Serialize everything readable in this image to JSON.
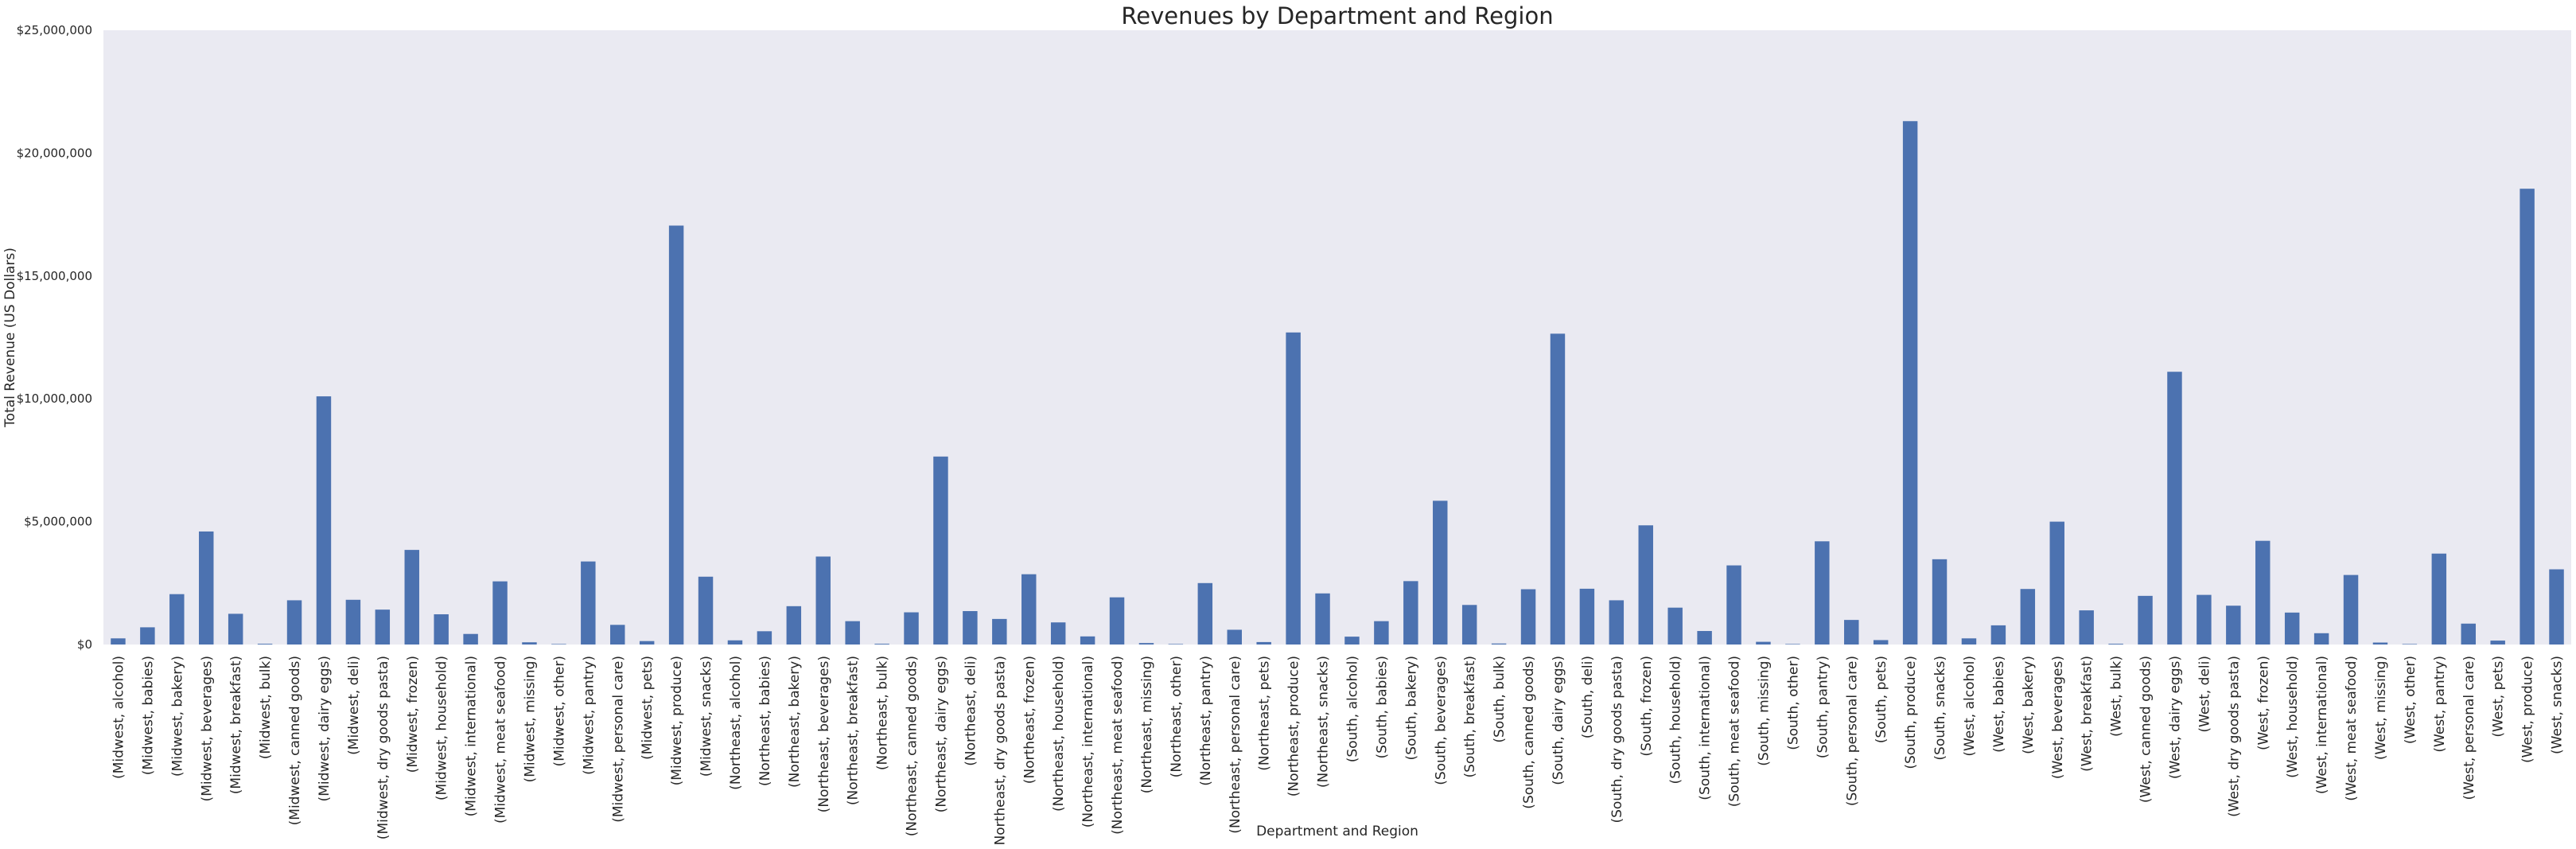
{
  "chart_data": {
    "type": "bar",
    "title": "Revenues by Department and Region",
    "xlabel": "Department and Region",
    "ylabel": "Total Revenue (US Dollars)",
    "ylim": [
      0,
      25000000
    ],
    "yticks": [
      0,
      5000000,
      10000000,
      15000000,
      20000000,
      25000000
    ],
    "ytick_labels": [
      "$0",
      "$5,000,000",
      "$10,000,000",
      "$15,000,000",
      "$20,000,000",
      "$25,000,000"
    ],
    "grid": false,
    "bar_color": "#4c72b0",
    "plot_background": "#eaeaf2",
    "categories": [
      "(Midwest, alcohol)",
      "(Midwest, babies)",
      "(Midwest, bakery)",
      "(Midwest, beverages)",
      "(Midwest, breakfast)",
      "(Midwest, bulk)",
      "(Midwest, canned goods)",
      "(Midwest, dairy eggs)",
      "(Midwest, deli)",
      "(Midwest, dry goods pasta)",
      "(Midwest, frozen)",
      "(Midwest, household)",
      "(Midwest, international)",
      "(Midwest, meat seafood)",
      "(Midwest, missing)",
      "(Midwest, other)",
      "(Midwest, pantry)",
      "(Midwest, personal care)",
      "(Midwest, pets)",
      "(Midwest, produce)",
      "(Midwest, snacks)",
      "(Northeast, alcohol)",
      "(Northeast, babies)",
      "(Northeast, bakery)",
      "(Northeast, beverages)",
      "(Northeast, breakfast)",
      "(Northeast, bulk)",
      "(Northeast, canned goods)",
      "(Northeast, dairy eggs)",
      "(Northeast, deli)",
      "(Northeast, dry goods pasta)",
      "(Northeast, frozen)",
      "(Northeast, household)",
      "(Northeast, international)",
      "(Northeast, meat seafood)",
      "(Northeast, missing)",
      "(Northeast, other)",
      "(Northeast, pantry)",
      "(Northeast, personal care)",
      "(Northeast, pets)",
      "(Northeast, produce)",
      "(Northeast, snacks)",
      "(South, alcohol)",
      "(South, babies)",
      "(South, bakery)",
      "(South, beverages)",
      "(South, breakfast)",
      "(South, bulk)",
      "(South, canned goods)",
      "(South, dairy eggs)",
      "(South, deli)",
      "(South, dry goods pasta)",
      "(South, frozen)",
      "(South, household)",
      "(South, international)",
      "(South, meat seafood)",
      "(South, missing)",
      "(South, other)",
      "(South, pantry)",
      "(South, personal care)",
      "(South, pets)",
      "(South, produce)",
      "(South, snacks)",
      "(West, alcohol)",
      "(West, babies)",
      "(West, bakery)",
      "(West, beverages)",
      "(West, breakfast)",
      "(West, bulk)",
      "(West, canned goods)",
      "(West, dairy eggs)",
      "(West, deli)",
      "(West, dry goods pasta)",
      "(West, frozen)",
      "(West, household)",
      "(West, international)",
      "(West, meat seafood)",
      "(West, missing)",
      "(West, other)",
      "(West, pantry)",
      "(West, personal care)",
      "(West, pets)",
      "(West, produce)",
      "(West, snacks)"
    ],
    "values": [
      250000,
      700000,
      2050000,
      4600000,
      1250000,
      30000,
      1800000,
      10100000,
      1820000,
      1420000,
      3850000,
      1230000,
      430000,
      2570000,
      90000,
      20000,
      3380000,
      800000,
      140000,
      17050000,
      2760000,
      170000,
      540000,
      1560000,
      3580000,
      950000,
      30000,
      1310000,
      7650000,
      1360000,
      1040000,
      2860000,
      900000,
      330000,
      1920000,
      60000,
      20000,
      2500000,
      600000,
      100000,
      12700000,
      2080000,
      320000,
      950000,
      2580000,
      5850000,
      1610000,
      40000,
      2250000,
      12650000,
      2270000,
      1800000,
      4850000,
      1500000,
      550000,
      3220000,
      110000,
      20000,
      4200000,
      1000000,
      180000,
      21300000,
      3470000,
      250000,
      780000,
      2260000,
      5000000,
      1390000,
      30000,
      1980000,
      11100000,
      2020000,
      1580000,
      4220000,
      1300000,
      460000,
      2830000,
      80000,
      20000,
      3700000,
      850000,
      160000,
      18550000,
      3060000
    ]
  }
}
